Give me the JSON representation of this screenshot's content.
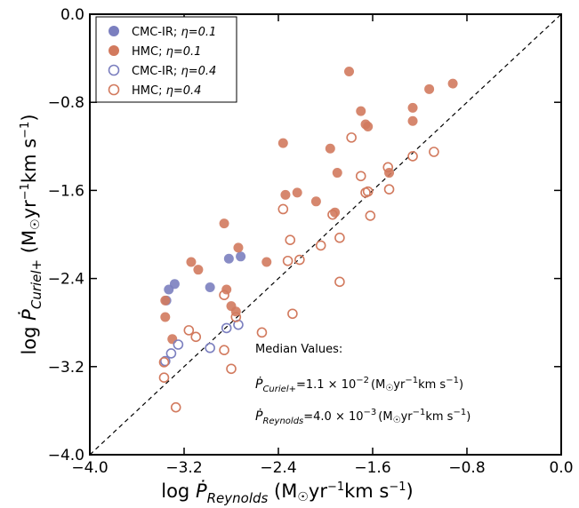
{
  "chart_data": {
    "type": "scatter",
    "title": "",
    "xlabel": "log Ṗ_{Reynolds} (M⊙yr⁻¹km s⁻¹)",
    "ylabel": "log Ṗ_{Curiel+} (M⊙yr⁻¹km s⁻¹)",
    "xlabel_parts": {
      "prefix": "log ",
      "symbol": "Ṗ",
      "sub": "Reynolds",
      "units": " (M",
      "sun": "☉",
      "units2": "yr",
      "exp": "−1",
      "units3": "km s",
      "exp2": "−1",
      "close": ")"
    },
    "ylabel_parts": {
      "prefix": "log ",
      "symbol": "Ṗ",
      "sub": "Curiel+",
      "units": " (M",
      "sun": "☉",
      "units2": "yr",
      "exp": "−1",
      "units3": "km s",
      "exp2": "−1",
      "close": ")"
    },
    "xlim": [
      -4.0,
      0.0
    ],
    "ylim": [
      -4.0,
      0.0
    ],
    "xticks": [
      "−4.0",
      "−3.2",
      "−2.4",
      "−1.6",
      "−0.8",
      "0.0"
    ],
    "xtick_values": [
      -4.0,
      -3.2,
      -2.4,
      -1.6,
      -0.8,
      0.0
    ],
    "yticks": [
      "−4.0",
      "−3.2",
      "−2.4",
      "−1.6",
      "−0.8",
      "0.0"
    ],
    "ytick_values": [
      -4.0,
      -3.2,
      -2.4,
      -1.6,
      -0.8,
      0.0
    ],
    "grid": false,
    "legend_position": "top-left",
    "reference_line": "y = x (dashed)",
    "series": [
      {
        "name": "CMC-IR; η=0.1",
        "name_main": "CMC-IR; ",
        "name_eta": "η=0.1",
        "color": "#7b7fbf",
        "filled": true,
        "points": [
          [
            -3.35,
            -2.6
          ],
          [
            -3.33,
            -2.5
          ],
          [
            -3.28,
            -2.45
          ],
          [
            -2.98,
            -2.48
          ],
          [
            -2.82,
            -2.22
          ],
          [
            -2.72,
            -2.2
          ]
        ]
      },
      {
        "name": "HMC; η=0.1",
        "name_main": "HMC; ",
        "name_eta": "η=0.1",
        "color": "#d27a5e",
        "filled": true,
        "points": [
          [
            -3.36,
            -2.6
          ],
          [
            -3.36,
            -2.75
          ],
          [
            -3.3,
            -2.95
          ],
          [
            -3.14,
            -2.25
          ],
          [
            -3.08,
            -2.32
          ],
          [
            -2.86,
            -1.9
          ],
          [
            -2.84,
            -2.5
          ],
          [
            -2.8,
            -2.65
          ],
          [
            -2.74,
            -2.12
          ],
          [
            -2.76,
            -2.7
          ],
          [
            -2.5,
            -2.25
          ],
          [
            -2.36,
            -1.17
          ],
          [
            -2.34,
            -1.64
          ],
          [
            -2.24,
            -1.62
          ],
          [
            -2.08,
            -1.7
          ],
          [
            -1.96,
            -1.22
          ],
          [
            -1.92,
            -1.8
          ],
          [
            -1.9,
            -1.44
          ],
          [
            -1.8,
            -0.52
          ],
          [
            -1.7,
            -0.88
          ],
          [
            -1.66,
            -1.0
          ],
          [
            -1.64,
            -1.02
          ],
          [
            -1.46,
            -1.44
          ],
          [
            -1.26,
            -0.85
          ],
          [
            -1.26,
            -0.97
          ],
          [
            -1.12,
            -0.68
          ],
          [
            -0.92,
            -0.63
          ]
        ]
      },
      {
        "name": "CMC-IR; η=0.4",
        "name_main": "CMC-IR; ",
        "name_eta": "η=0.4",
        "color": "#7b7fbf",
        "filled": false,
        "points": [
          [
            -3.36,
            -3.15
          ],
          [
            -3.31,
            -3.08
          ],
          [
            -3.25,
            -3.0
          ],
          [
            -2.98,
            -3.03
          ],
          [
            -2.84,
            -2.85
          ],
          [
            -2.74,
            -2.82
          ]
        ]
      },
      {
        "name": "HMC; η=0.4",
        "name_main": "HMC; ",
        "name_eta": "η=0.4",
        "color": "#d27a5e",
        "filled": false,
        "points": [
          [
            -3.37,
            -3.16
          ],
          [
            -3.37,
            -3.3
          ],
          [
            -3.27,
            -3.57
          ],
          [
            -3.16,
            -2.87
          ],
          [
            -3.1,
            -2.93
          ],
          [
            -2.86,
            -2.55
          ],
          [
            -2.86,
            -3.05
          ],
          [
            -2.8,
            -3.22
          ],
          [
            -2.76,
            -2.75
          ],
          [
            -2.54,
            -2.89
          ],
          [
            -2.36,
            -1.77
          ],
          [
            -2.32,
            -2.24
          ],
          [
            -2.3,
            -2.05
          ],
          [
            -2.28,
            -2.72
          ],
          [
            -2.22,
            -2.23
          ],
          [
            -2.04,
            -2.1
          ],
          [
            -1.94,
            -1.82
          ],
          [
            -1.88,
            -2.43
          ],
          [
            -1.88,
            -2.03
          ],
          [
            -1.78,
            -1.12
          ],
          [
            -1.7,
            -1.47
          ],
          [
            -1.66,
            -1.62
          ],
          [
            -1.64,
            -1.61
          ],
          [
            -1.62,
            -1.83
          ],
          [
            -1.47,
            -1.39
          ],
          [
            -1.46,
            -1.59
          ],
          [
            -1.26,
            -1.29
          ],
          [
            -1.08,
            -1.25
          ]
        ]
      }
    ],
    "annotations": {
      "header": "Median Values:",
      "curiel": {
        "symbol": "Ṗ",
        "sub": "Curiel+",
        "value": "=1.1 × 10",
        "exp": "−2",
        "units": "(M",
        "sun": "☉",
        "units2": "yr",
        "exp_u": "−1",
        "units3": "km s",
        "exp_u2": "−1",
        "close": ")"
      },
      "reynolds": {
        "symbol": "Ṗ",
        "sub": "Reynolds",
        "value": "=4.0 × 10",
        "exp": "−3",
        "units": "(M",
        "sun": "☉",
        "units2": "yr",
        "exp_u": "−1",
        "units3": "km s",
        "exp_u2": "−1",
        "close": ")"
      }
    }
  }
}
